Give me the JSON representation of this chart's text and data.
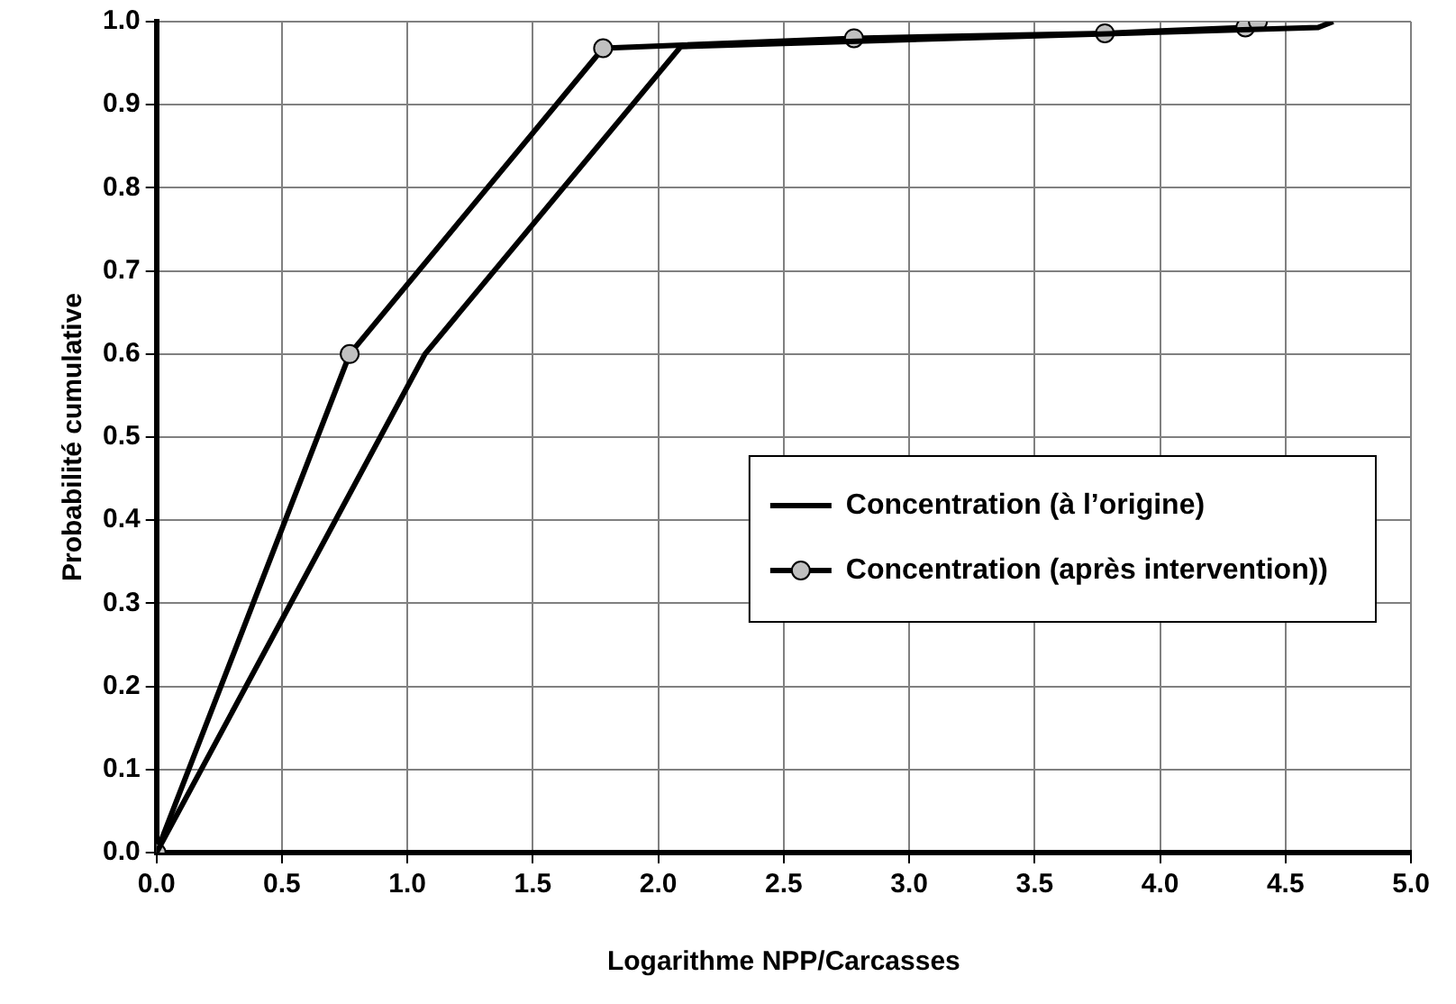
{
  "chart_data": {
    "type": "line",
    "xlabel": "Logarithme NPP/Carcasses",
    "ylabel": "Probabilité cumulative",
    "xlim": [
      0,
      5
    ],
    "xticks": [
      {
        "value": 0,
        "label": "0.0"
      },
      0.5,
      {
        "value": 1,
        "label": "1.0"
      },
      1.5,
      {
        "value": 2,
        "label": "2.0"
      },
      2.5,
      {
        "value": 3,
        "label": "3.0"
      },
      3.5,
      {
        "value": 4,
        "label": "4.0"
      },
      4.5,
      {
        "value": 5,
        "label": "5.0"
      }
    ],
    "ylim": [
      0,
      1
    ],
    "yticks": [
      {
        "value": 0,
        "label": "0.0"
      },
      0.1,
      0.2,
      0.3,
      0.4,
      0.5,
      0.6,
      0.7,
      0.8,
      0.9,
      {
        "value": 1,
        "label": "1.0"
      }
    ],
    "grid": true,
    "legend": "right",
    "series": [
      {
        "name": "Concentration (à l’origine)",
        "color": "#000000",
        "marker": "none",
        "x": [
          0,
          1.07,
          2.09,
          4.63,
          4.69
        ],
        "values": [
          0,
          0.6,
          0.97,
          0.993,
          1.0
        ]
      },
      {
        "name": "Concentration (après intervention))",
        "color": "#000000",
        "marker": "circle",
        "x": [
          0,
          0.77,
          1.78,
          2.78,
          3.78,
          4.34,
          4.39
        ],
        "values": [
          0,
          0.6,
          0.968,
          0.98,
          0.986,
          0.993,
          1.0
        ]
      }
    ]
  }
}
